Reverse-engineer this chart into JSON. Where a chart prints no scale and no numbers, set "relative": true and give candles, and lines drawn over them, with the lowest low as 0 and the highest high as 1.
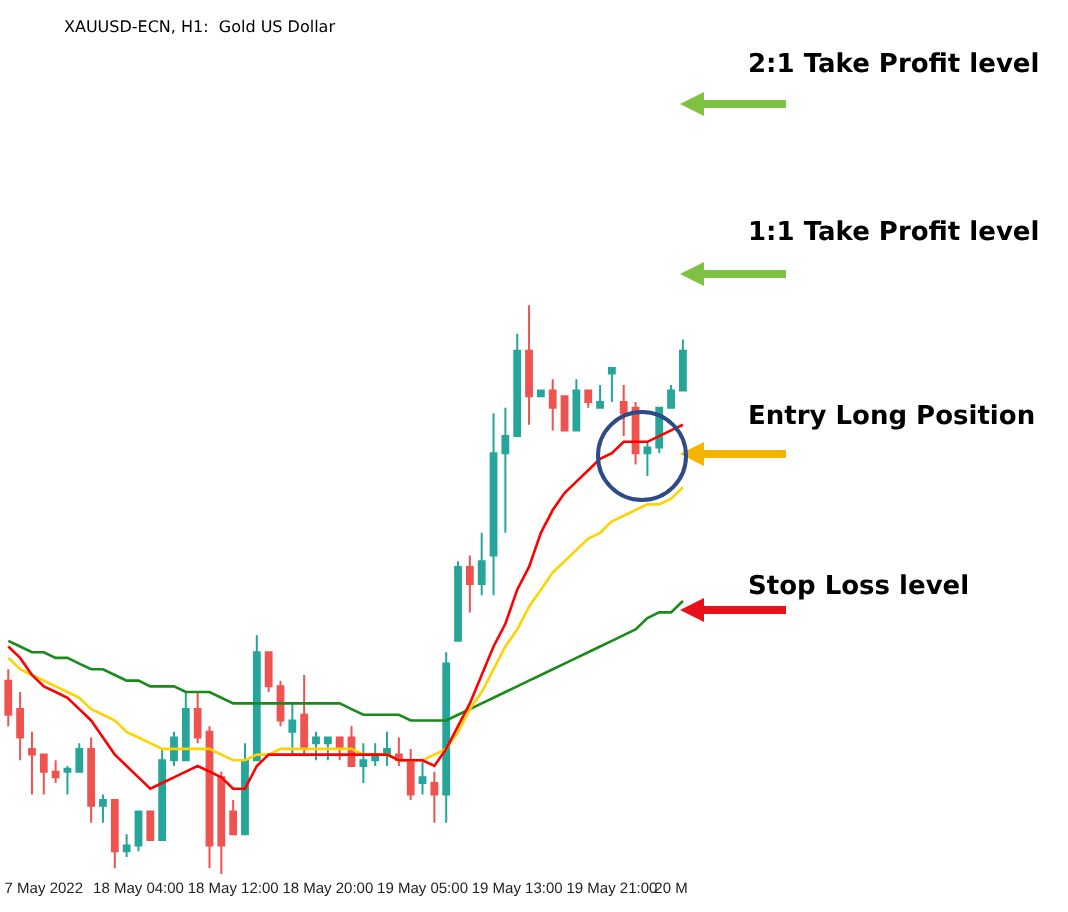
{
  "chart_data": {
    "type": "candlestick",
    "title": "XAUUSD-ECN, H1:  Gold US Dollar",
    "relative": true,
    "categories": [
      null,
      null,
      null,
      "7 May 2022",
      null,
      null,
      null,
      null,
      null,
      null,
      null,
      "18 May 04:00",
      null,
      null,
      null,
      null,
      null,
      null,
      null,
      "18 May 12:00",
      null,
      null,
      null,
      null,
      null,
      null,
      null,
      "18 May 20:00",
      null,
      null,
      null,
      null,
      null,
      null,
      null,
      "19 May 05:00",
      null,
      null,
      null,
      null,
      null,
      null,
      null,
      "19 May 13:00",
      null,
      null,
      null,
      null,
      null,
      null,
      null,
      "19 May 21:00",
      null,
      null,
      null,
      null,
      "20 M",
      null
    ],
    "ohlc": [
      [
        0.34,
        0.36,
        0.26,
        0.28
      ],
      [
        0.29,
        0.32,
        0.2,
        0.24
      ],
      [
        0.22,
        0.25,
        0.14,
        0.21
      ],
      [
        0.21,
        0.21,
        0.14,
        0.18
      ],
      [
        0.18,
        0.2,
        0.16,
        0.17
      ],
      [
        0.18,
        0.19,
        0.14,
        0.185
      ],
      [
        0.18,
        0.23,
        0.18,
        0.22
      ],
      [
        0.22,
        0.24,
        0.09,
        0.12
      ],
      [
        0.12,
        0.14,
        0.09,
        0.13
      ],
      [
        0.13,
        0.13,
        0.01,
        0.04
      ],
      [
        0.04,
        0.07,
        0.03,
        0.05
      ],
      [
        0.05,
        0.11,
        0.04,
        0.11
      ],
      [
        0.11,
        0.11,
        0.06,
        0.06
      ],
      [
        0.06,
        0.22,
        0.06,
        0.2
      ],
      [
        0.2,
        0.25,
        0.19,
        0.24
      ],
      [
        0.2,
        0.32,
        0.2,
        0.29
      ],
      [
        0.29,
        0.32,
        0.23,
        0.24
      ],
      [
        0.25,
        0.26,
        0.01,
        0.05
      ],
      [
        0.17,
        0.18,
        0,
        0.05
      ],
      [
        0.11,
        0.13,
        0.07,
        0.07
      ],
      [
        0.07,
        0.23,
        0.07,
        0.2
      ],
      [
        0.2,
        0.42,
        0.2,
        0.39
      ],
      [
        0.39,
        0.39,
        0.32,
        0.33
      ],
      [
        0.33,
        0.34,
        0.26,
        0.27
      ],
      [
        0.25,
        0.3,
        0.21,
        0.27
      ],
      [
        0.28,
        0.35,
        0.21,
        0.22
      ],
      [
        0.23,
        0.25,
        0.2,
        0.24
      ],
      [
        0.23,
        0.24,
        0.2,
        0.24
      ],
      [
        0.24,
        0.24,
        0.2,
        0.22
      ],
      [
        0.24,
        0.26,
        0.19,
        0.19
      ],
      [
        0.19,
        0.23,
        0.16,
        0.2
      ],
      [
        0.2,
        0.23,
        0.19,
        0.21
      ],
      [
        0.21,
        0.25,
        0.19,
        0.22
      ],
      [
        0.21,
        0.24,
        0.19,
        0.2
      ],
      [
        0.2,
        0.22,
        0.13,
        0.14
      ],
      [
        0.16,
        0.2,
        0.14,
        0.17
      ],
      [
        0.16,
        0.18,
        0.09,
        0.14
      ],
      [
        0.14,
        0.39,
        0.09,
        0.37
      ],
      [
        0.41,
        0.55,
        0.41,
        0.54
      ],
      [
        0.54,
        0.56,
        0.46,
        0.51
      ],
      [
        0.51,
        0.6,
        0.49,
        0.55
      ],
      [
        0.56,
        0.81,
        0.49,
        0.74
      ],
      [
        0.74,
        0.82,
        0.6,
        0.77
      ],
      [
        0.77,
        0.95,
        0.77,
        0.92
      ],
      [
        0.92,
        1.0,
        0.79,
        0.84
      ],
      [
        0.84,
        0.85,
        0.84,
        0.85
      ],
      [
        0.85,
        0.87,
        0.78,
        0.82
      ],
      [
        0.84,
        0.84,
        0.78,
        0.78
      ],
      [
        0.78,
        0.87,
        0.78,
        0.85
      ],
      [
        0.85,
        0.85,
        0.82,
        0.83
      ],
      [
        0.82,
        0.86,
        0.82,
        0.83
      ],
      [
        0.88,
        0.89,
        0.83,
        0.89
      ],
      [
        0.83,
        0.86,
        0.77,
        0.81
      ],
      [
        0.82,
        0.83,
        0.72,
        0.74
      ],
      [
        0.74,
        0.76,
        0.7,
        0.75
      ],
      [
        0.75,
        0.82,
        0.74,
        0.82
      ],
      [
        0.82,
        0.86,
        0.82,
        0.85
      ],
      [
        0.85,
        0.94,
        0.85,
        0.92
      ]
    ],
    "series": [
      {
        "type": "line",
        "color": "#1a8a1a",
        "values": [
          0.41,
          0.4,
          0.39,
          0.39,
          0.38,
          0.38,
          0.37,
          0.36,
          0.36,
          0.35,
          0.34,
          0.34,
          0.33,
          0.33,
          0.33,
          0.32,
          0.32,
          0.32,
          0.31,
          0.3,
          0.3,
          0.3,
          0.3,
          0.3,
          0.3,
          0.3,
          0.3,
          0.3,
          0.3,
          0.29,
          0.28,
          0.28,
          0.28,
          0.28,
          0.27,
          0.27,
          0.27,
          0.27,
          0.28,
          0.29,
          0.3,
          0.31,
          0.32,
          0.33,
          0.34,
          0.35,
          0.36,
          0.37,
          0.38,
          0.39,
          0.4,
          0.41,
          0.42,
          0.43,
          0.45,
          0.46,
          0.46,
          0.48
        ]
      },
      {
        "type": "line",
        "color": "#ffd200",
        "values": [
          0.38,
          0.36,
          0.35,
          0.34,
          0.33,
          0.32,
          0.31,
          0.29,
          0.28,
          0.27,
          0.25,
          0.24,
          0.23,
          0.22,
          0.22,
          0.22,
          0.22,
          0.22,
          0.21,
          0.2,
          0.2,
          0.21,
          0.21,
          0.22,
          0.22,
          0.22,
          0.22,
          0.22,
          0.22,
          0.22,
          0.21,
          0.21,
          0.21,
          0.2,
          0.2,
          0.2,
          0.21,
          0.22,
          0.25,
          0.29,
          0.32,
          0.36,
          0.4,
          0.43,
          0.47,
          0.5,
          0.53,
          0.55,
          0.57,
          0.59,
          0.6,
          0.62,
          0.63,
          0.64,
          0.65,
          0.65,
          0.66,
          0.68
        ]
      },
      {
        "type": "line",
        "color": "#ff0000",
        "values": [
          0.4,
          0.38,
          0.35,
          0.33,
          0.32,
          0.31,
          0.29,
          0.27,
          0.24,
          0.21,
          0.19,
          0.17,
          0.15,
          0.16,
          0.17,
          0.18,
          0.19,
          0.18,
          0.17,
          0.15,
          0.15,
          0.19,
          0.21,
          0.21,
          0.21,
          0.21,
          0.21,
          0.21,
          0.21,
          0.21,
          0.21,
          0.21,
          0.21,
          0.2,
          0.2,
          0.2,
          0.19,
          0.22,
          0.26,
          0.3,
          0.35,
          0.4,
          0.44,
          0.5,
          0.54,
          0.6,
          0.64,
          0.67,
          0.69,
          0.71,
          0.73,
          0.74,
          0.76,
          0.76,
          0.76,
          0.77,
          0.78,
          0.79
        ]
      }
    ],
    "annotations": [
      "2:1 Take Profit level",
      "1:1 Take Profit level",
      "Entry Long Position",
      "Stop Loss level"
    ]
  }
}
